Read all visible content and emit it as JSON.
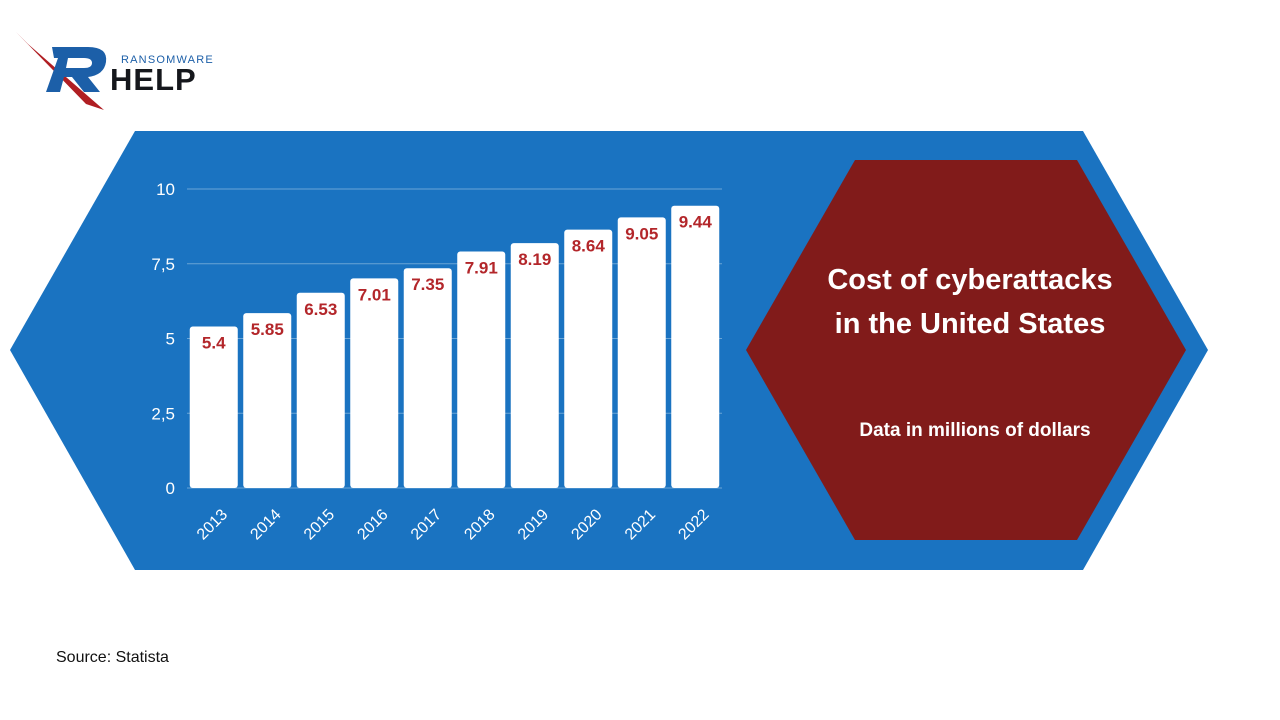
{
  "logo": {
    "small_text": "RANSOMWARE",
    "big_text": "HELP",
    "colors": {
      "blue": "#1c5fa8",
      "dark": "#15171c",
      "red": "#b01e23"
    }
  },
  "panel": {
    "title_line1": "Cost of cyberattacks",
    "title_line2": "in the United States",
    "subtitle": "Data in millions of dollars"
  },
  "source": "Source: Statista",
  "colors": {
    "outer_hexagon": "#1a73c1",
    "inner_hexagon": "#811b1a",
    "bar": "#ffffff",
    "value_label": "#b3262a",
    "axis_text": "#ffffff"
  },
  "chart_data": {
    "type": "bar",
    "categories": [
      "2013",
      "2014",
      "2015",
      "2016",
      "2017",
      "2018",
      "2019",
      "2020",
      "2021",
      "2022"
    ],
    "values": [
      5.4,
      5.85,
      6.53,
      7.01,
      7.35,
      7.91,
      8.19,
      8.64,
      9.05,
      9.44
    ],
    "value_labels": [
      "5.4",
      "5.85",
      "6.53",
      "7.01",
      "7.35",
      "7.91",
      "8.19",
      "8.64",
      "9.05",
      "9.44"
    ],
    "yticks": [
      0,
      2.5,
      5,
      7.5,
      10
    ],
    "ytick_labels": [
      "0",
      "2,5",
      "5",
      "7,5",
      "10"
    ],
    "ylim": [
      0,
      10
    ],
    "grid": true,
    "title": "",
    "xlabel": "",
    "ylabel": ""
  }
}
